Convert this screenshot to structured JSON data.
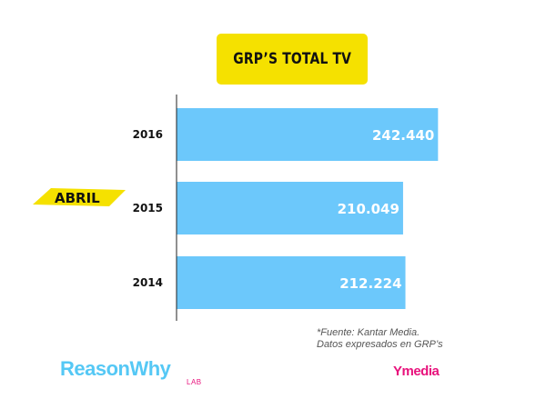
{
  "title": "GRP’S TOTAL TV",
  "chart_data": {
    "type": "bar",
    "orientation": "horizontal",
    "categories": [
      "2016",
      "2015",
      "2014"
    ],
    "values": [
      242440,
      210049,
      212224
    ],
    "value_labels": [
      "242.440",
      "210.049",
      "212.224"
    ],
    "title": "GRP’S TOTAL TV",
    "xlabel": "",
    "ylabel": "",
    "xlim": [
      0,
      270000
    ],
    "grid": false,
    "bar_color": "#6cc8fb",
    "value_label_color": "#ffffff",
    "label_position": "inside-end"
  },
  "ribbon": {
    "label": "ABRIL",
    "color": "#f5e100"
  },
  "source": {
    "line1": "*Fuente: Kantar Media.",
    "line2": "Datos expresados en GRP’s"
  },
  "logos": {
    "reasonwhy": "ReasonWhy",
    "reasonwhy_color": "#55c8f5",
    "lab": "LAB",
    "ymedia": "Ymedia",
    "ymedia_color": "#e8127c"
  },
  "colors": {
    "title_bg": "#f5e100",
    "axis": "#222222"
  }
}
